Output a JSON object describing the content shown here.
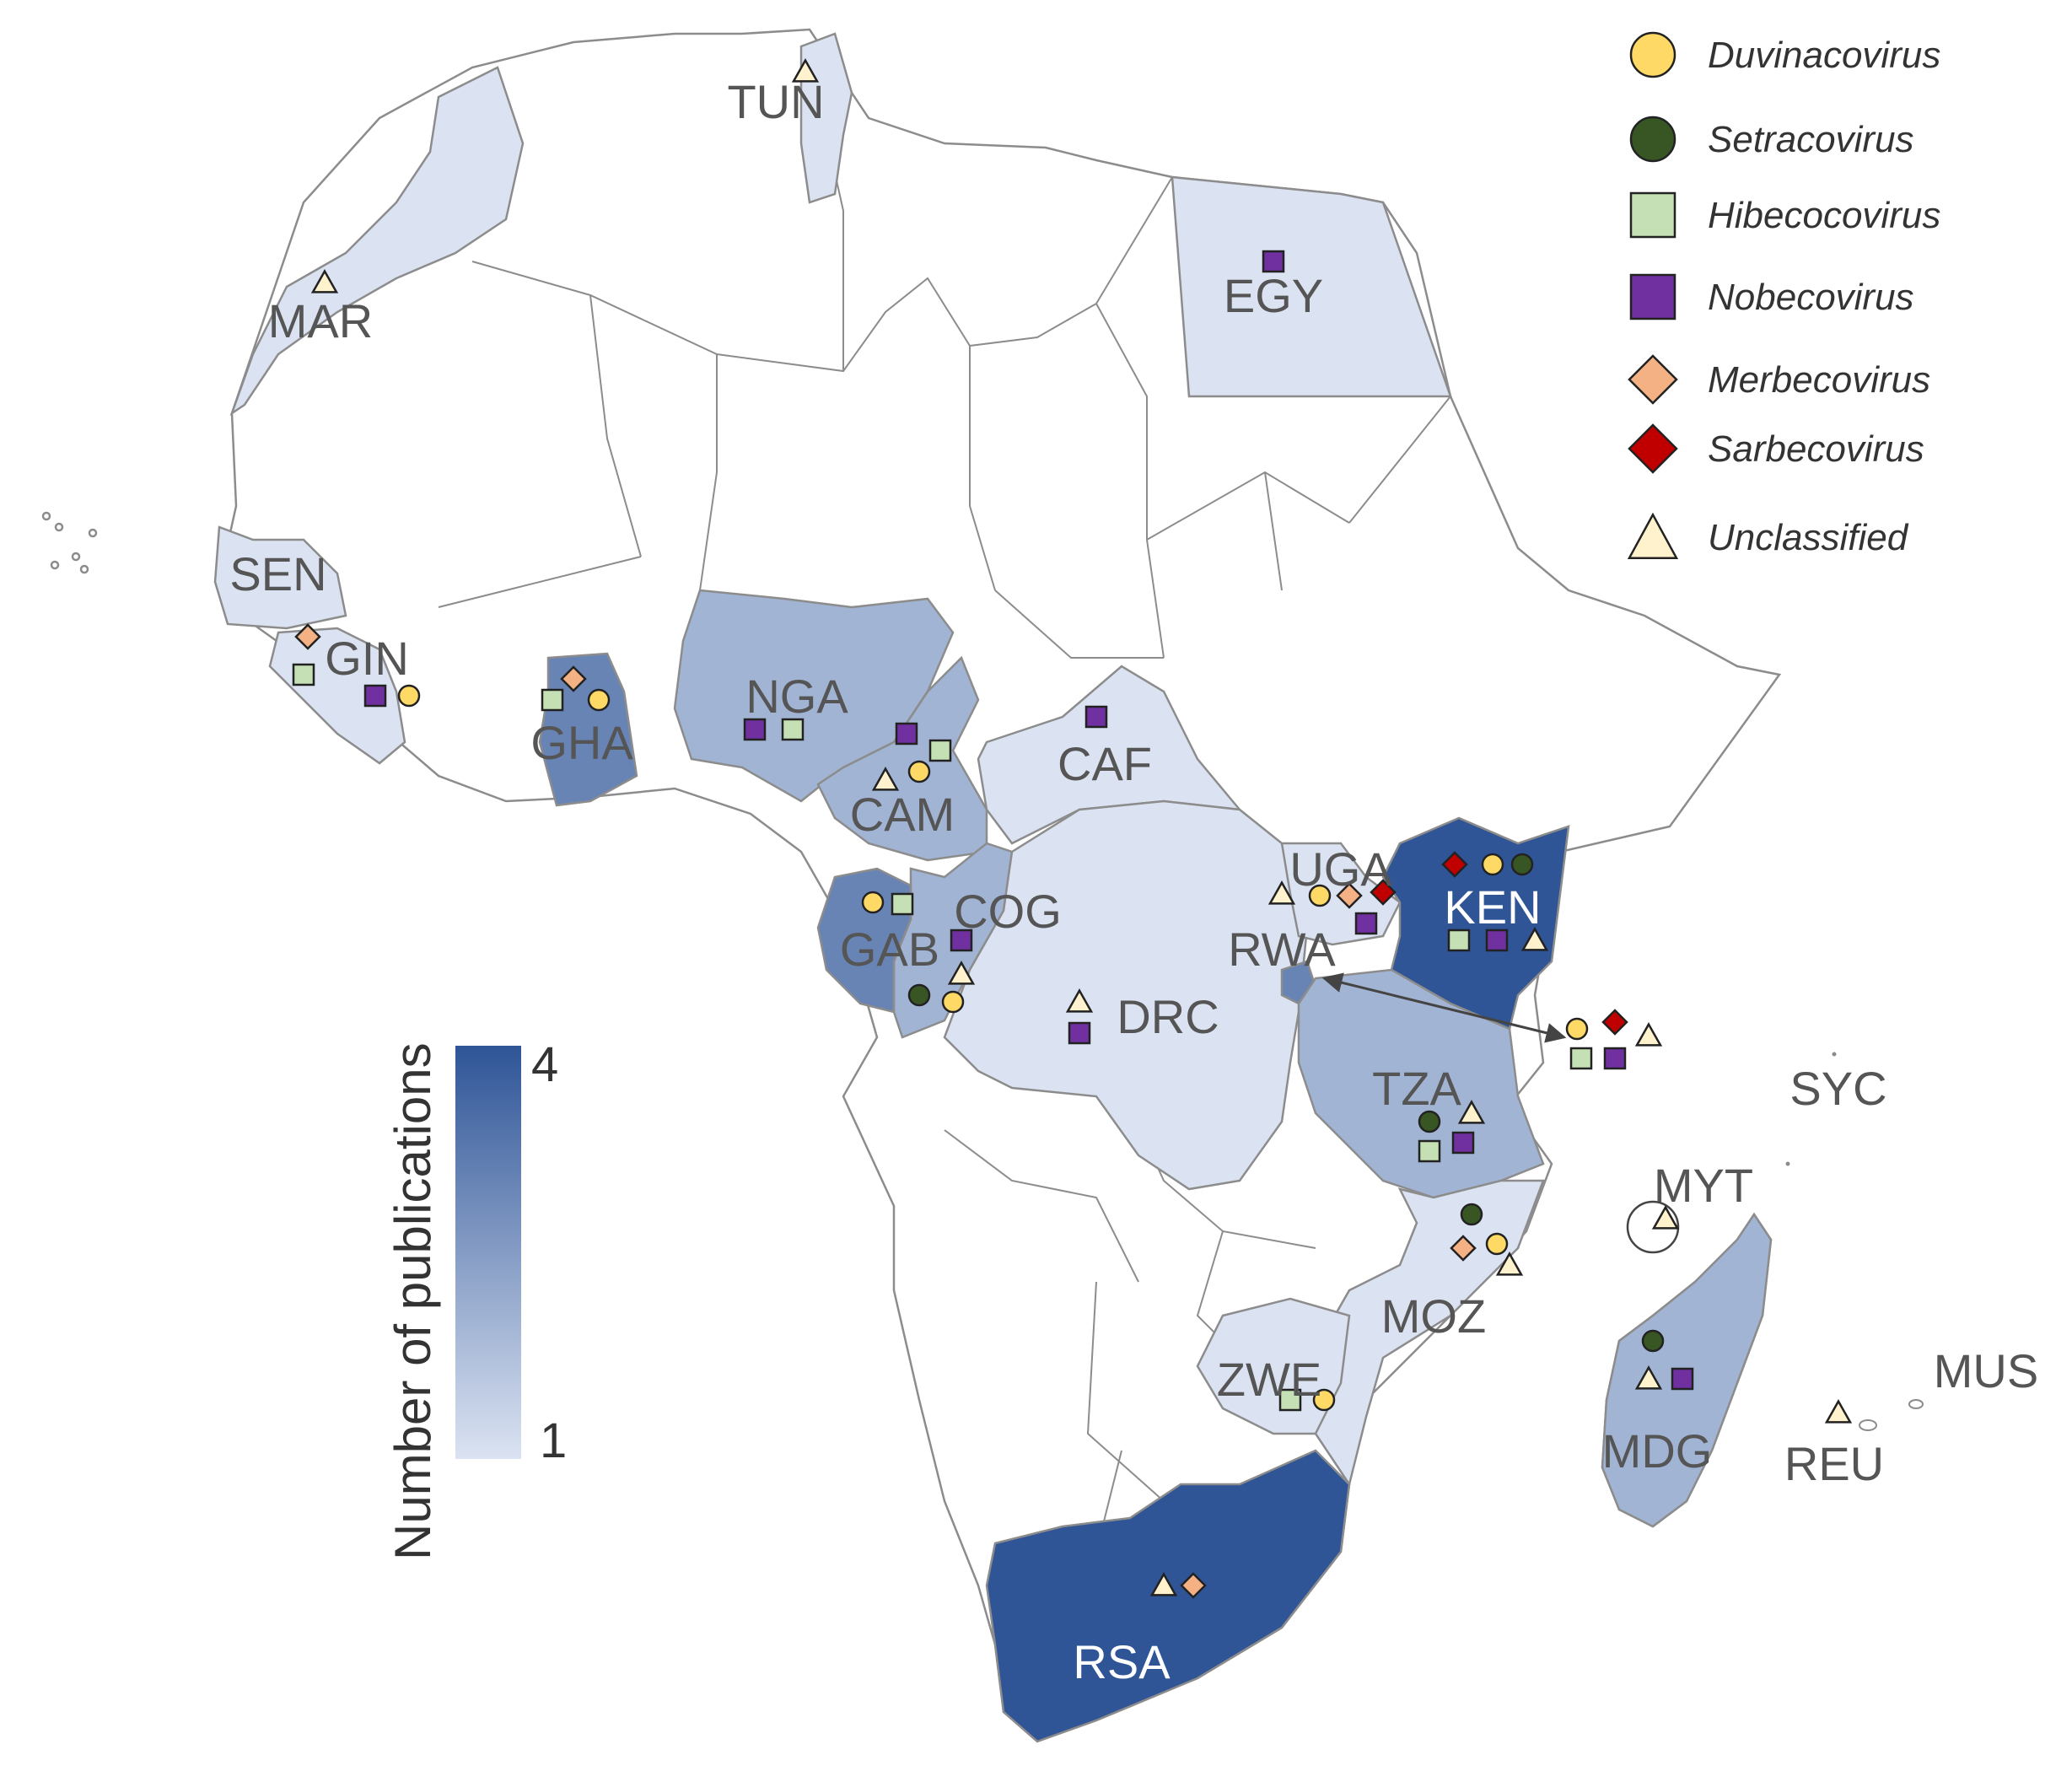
{
  "colorbar": {
    "title": "Number of publications",
    "max_label": "4",
    "min_label": "1",
    "color_min": "#dbe3f2",
    "color_max": "#2f5597"
  },
  "legend": [
    {
      "key": "duvi",
      "label": "Duvinacovirus",
      "shape": "circle",
      "color": "#ffd966"
    },
    {
      "key": "setra",
      "label": "Setracovirus",
      "shape": "circle",
      "color": "#375623"
    },
    {
      "key": "hibe",
      "label": "Hibecocovirus",
      "shape": "square",
      "color": "#c5e0b4"
    },
    {
      "key": "nobe",
      "label": "Nobecovirus",
      "shape": "square",
      "color": "#7030a0"
    },
    {
      "key": "merbe",
      "label": "Merbecovirus",
      "shape": "diamond",
      "color": "#f4b183"
    },
    {
      "key": "sarbe",
      "label": "Sarbecovirus",
      "shape": "diamond",
      "color": "#c00000"
    },
    {
      "key": "uncl",
      "label": "Unclassified",
      "shape": "triangle",
      "color": "#fff2cc"
    }
  ],
  "countries": [
    {
      "code": "TUN",
      "publications": 1,
      "viruses": [
        "uncl"
      ]
    },
    {
      "code": "MAR",
      "publications": 1,
      "viruses": [
        "uncl"
      ]
    },
    {
      "code": "EGY",
      "publications": 1,
      "viruses": [
        "nobe"
      ]
    },
    {
      "code": "SEN",
      "publications": 1,
      "viruses": []
    },
    {
      "code": "GIN",
      "publications": 1,
      "viruses": [
        "merbe",
        "hibe",
        "nobe",
        "duvi"
      ]
    },
    {
      "code": "GHA",
      "publications": 3,
      "viruses": [
        "merbe",
        "hibe",
        "duvi"
      ]
    },
    {
      "code": "NGA",
      "publications": 2,
      "viruses": [
        "nobe",
        "hibe"
      ]
    },
    {
      "code": "CAM",
      "publications": 2,
      "viruses": [
        "nobe",
        "hibe",
        "duvi",
        "uncl"
      ]
    },
    {
      "code": "CAF",
      "publications": 1,
      "viruses": [
        "nobe"
      ]
    },
    {
      "code": "COG",
      "publications": 2,
      "viruses": [
        "nobe",
        "uncl",
        "setra",
        "duvi"
      ]
    },
    {
      "code": "GAB",
      "publications": 3,
      "viruses": [
        "duvi",
        "hibe"
      ]
    },
    {
      "code": "DRC",
      "publications": 1,
      "viruses": [
        "uncl",
        "nobe"
      ]
    },
    {
      "code": "UGA",
      "publications": 1,
      "viruses": [
        "uncl",
        "duvi",
        "merbe",
        "sarbe",
        "nobe"
      ]
    },
    {
      "code": "KEN",
      "publications": 4,
      "viruses": [
        "sarbe",
        "duvi",
        "setra",
        "hibe",
        "nobe",
        "uncl",
        "duvi",
        "sarbe",
        "uncl",
        "hibe",
        "nobe"
      ]
    },
    {
      "code": "RWA",
      "publications": 3,
      "viruses": []
    },
    {
      "code": "TZA",
      "publications": 2,
      "viruses": [
        "setra",
        "uncl",
        "hibe",
        "nobe"
      ]
    },
    {
      "code": "MOZ",
      "publications": 1,
      "viruses": [
        "setra",
        "merbe",
        "duvi",
        "uncl"
      ]
    },
    {
      "code": "ZWE",
      "publications": 1,
      "viruses": [
        "hibe",
        "duvi"
      ]
    },
    {
      "code": "RSA",
      "publications": 4,
      "viruses": [
        "uncl",
        "merbe"
      ]
    },
    {
      "code": "MDG",
      "publications": 2,
      "viruses": [
        "setra",
        "uncl",
        "nobe"
      ]
    },
    {
      "code": "MYT",
      "publications": 1,
      "viruses": [
        "uncl"
      ]
    },
    {
      "code": "SYC",
      "publications": null,
      "viruses": []
    },
    {
      "code": "MUS",
      "publications": null,
      "viruses": []
    },
    {
      "code": "REU",
      "publications": 1,
      "viruses": [
        "uncl"
      ]
    }
  ]
}
